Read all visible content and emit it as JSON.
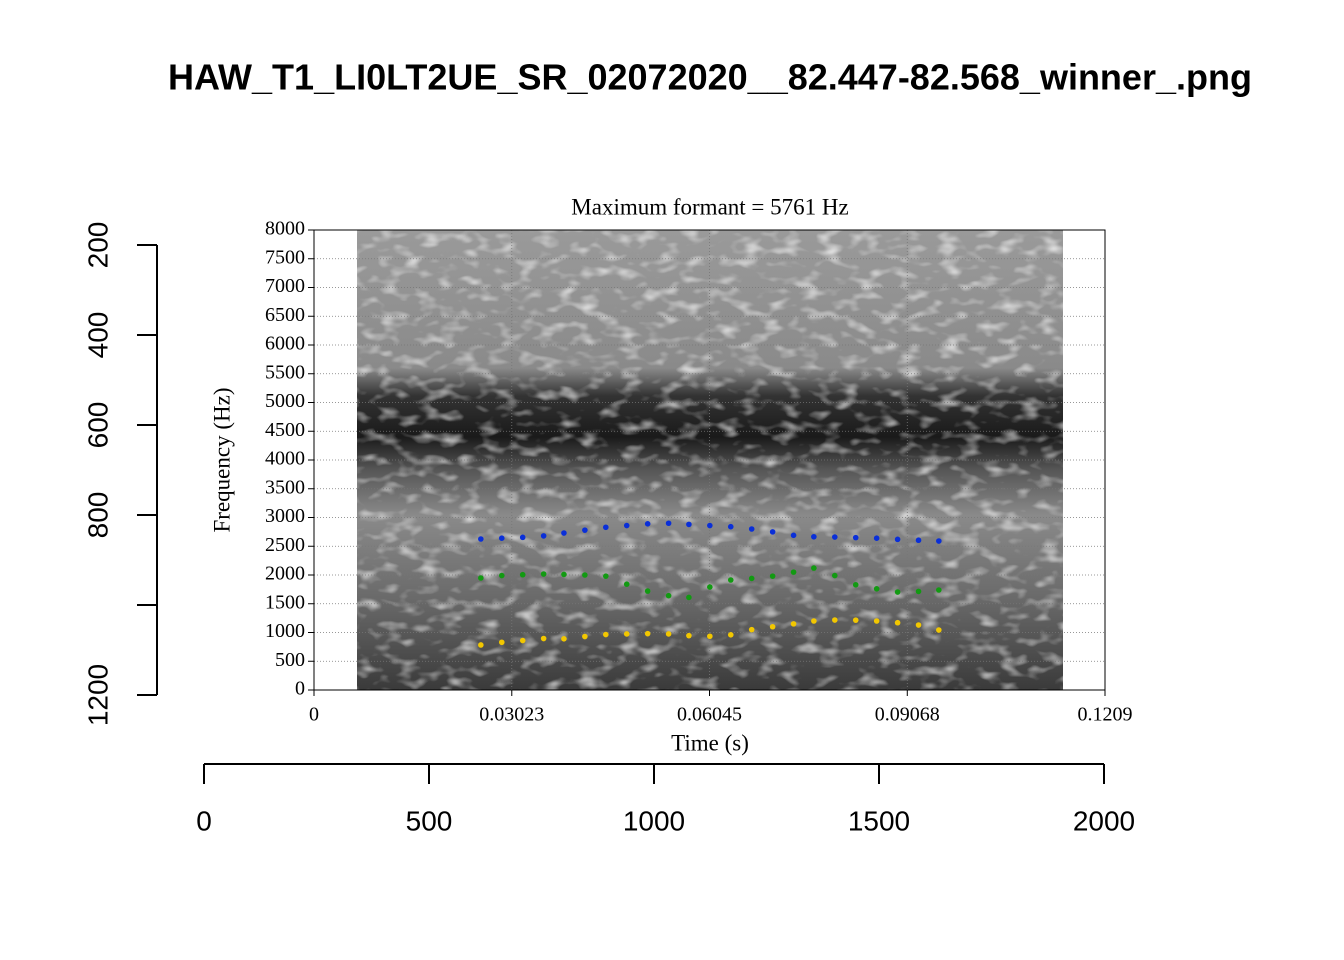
{
  "chart_data": [
    {
      "type": "frame",
      "title": "HAW_T1_LI0LT2UE_SR_02072020__82.447-82.568_winner_.png",
      "xlim": [
        0,
        2000
      ],
      "xticks": [
        0,
        500,
        1000,
        1500,
        2000
      ],
      "ylim": [
        1200,
        200
      ],
      "yticks": [
        200,
        400,
        600,
        800,
        {
          "value": 1000,
          "label": null
        },
        1200
      ]
    },
    {
      "type": "scatter",
      "title": "Maximum formant = 5761 Hz",
      "xlabel": "Time (s)",
      "ylabel": "Frequency (Hz)",
      "xlim": [
        0,
        0.1209
      ],
      "xticks": [
        0,
        0.03023,
        0.06045,
        0.09068,
        0.1209
      ],
      "ylim": [
        0,
        8000
      ],
      "yticks": [
        0,
        500,
        1000,
        1500,
        2000,
        2500,
        3000,
        3500,
        4000,
        4500,
        5000,
        5500,
        6000,
        6500,
        7000,
        7500,
        8000
      ],
      "grid": true,
      "x": [
        0.0255,
        0.0287,
        0.0319,
        0.0351,
        0.0382,
        0.0414,
        0.0446,
        0.0478,
        0.051,
        0.0542,
        0.0573,
        0.0605,
        0.0637,
        0.0669,
        0.0701,
        0.0733,
        0.0764,
        0.0796,
        0.0828,
        0.086,
        0.0892,
        0.0924,
        0.0955
      ],
      "series": [
        {
          "color": "#0a2fd8",
          "values": [
            2626,
            2640,
            2655,
            2680,
            2730,
            2780,
            2830,
            2860,
            2890,
            2900,
            2880,
            2860,
            2840,
            2800,
            2750,
            2690,
            2665,
            2660,
            2650,
            2640,
            2620,
            2605,
            2591
          ]
        },
        {
          "color": "#129a12",
          "values": [
            1948,
            1990,
            2005,
            2017,
            2010,
            2000,
            1980,
            1840,
            1720,
            1640,
            1610,
            1790,
            1913,
            1940,
            1980,
            2050,
            2120,
            1990,
            1830,
            1760,
            1704,
            1715,
            1739
          ]
        },
        {
          "color": "#f2c700",
          "values": [
            783,
            830,
            860,
            895,
            890,
            930,
            965,
            975,
            980,
            975,
            945,
            935,
            960,
            1050,
            1100,
            1150,
            1200,
            1217,
            1215,
            1200,
            1170,
            1130,
            1043
          ]
        }
      ]
    }
  ]
}
